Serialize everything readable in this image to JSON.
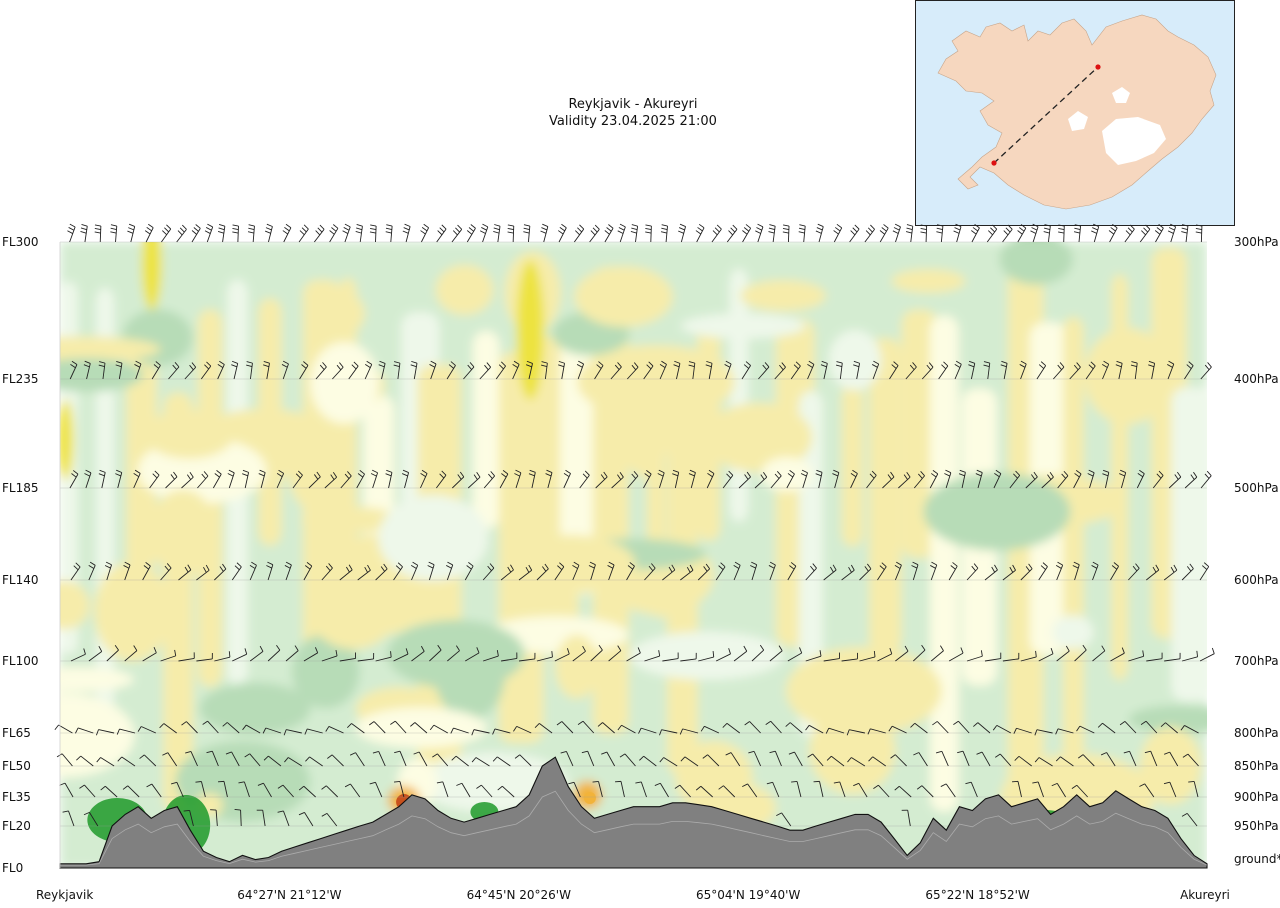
{
  "header": {
    "title": "Reykjavik - Akureyri",
    "validity": "Validity 23.04.2025 21:00"
  },
  "inset_map": {
    "icon": "iceland-route-map-icon",
    "sea_color": "#d7ecfa",
    "land_color": "#f6d7bf",
    "glacier_color": "#ffffff",
    "route_color": "#222222",
    "endpoint_color": "#dd1111"
  },
  "chart_data": {
    "type": "heatmap",
    "title": "Reykjavik - Akureyri",
    "subtitle": "Validity 23.04.2025 21:00",
    "x_labels": [
      "Reykjavik",
      "64°27'N 21°12'W",
      "64°45'N 20°26'W",
      "65°04'N 19°40'W",
      "65°22'N 18°52'W",
      "Akureyri"
    ],
    "x_positions": [
      0,
      0.2,
      0.4,
      0.6,
      0.8,
      1.0
    ],
    "flight_levels": [
      "FL300",
      "FL235",
      "FL185",
      "FL140",
      "FL100",
      "FL65",
      "FL50",
      "FL35",
      "FL20",
      "FL0"
    ],
    "fl_values": [
      300,
      235,
      185,
      140,
      100,
      65,
      50,
      35,
      20,
      0
    ],
    "pressure_levels": [
      "300hPa",
      "400hPa",
      "500hPa",
      "600hPa",
      "700hPa",
      "800hPa",
      "850hPa",
      "900hPa",
      "950hPa",
      "ground*"
    ],
    "terrain_fl": [
      2,
      2,
      2,
      3,
      20,
      26,
      30,
      24,
      28,
      30,
      18,
      8,
      5,
      3,
      6,
      4,
      5,
      8,
      10,
      12,
      14,
      16,
      18,
      20,
      22,
      26,
      30,
      36,
      34,
      28,
      24,
      22,
      24,
      26,
      28,
      30,
      36,
      50,
      54,
      40,
      30,
      24,
      26,
      28,
      30,
      30,
      30,
      32,
      32,
      31,
      30,
      28,
      26,
      24,
      22,
      20,
      18,
      18,
      20,
      22,
      24,
      26,
      26,
      22,
      14,
      6,
      12,
      24,
      18,
      30,
      28,
      34,
      36,
      30,
      32,
      34,
      26,
      30,
      36,
      30,
      32,
      38,
      34,
      30,
      28,
      24,
      14,
      6,
      2
    ],
    "field_colors": [
      "#b7dcb7",
      "#d4ecd1",
      "#eef8ea",
      "#fdfde3",
      "#f6ecaa",
      "#ede33f",
      "#f2b33a",
      "#c8511d",
      "#1e9a2a"
    ],
    "terrain_color": "#808080",
    "grid": true
  }
}
